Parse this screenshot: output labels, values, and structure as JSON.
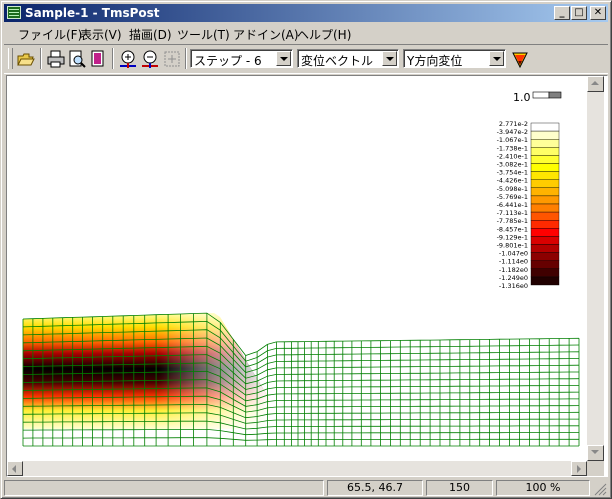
{
  "window": {
    "title": "Sample-1 - TmsPost"
  },
  "caption_buttons": {
    "minimize": "_",
    "maximize": "□",
    "close": "✕"
  },
  "menu": [
    {
      "label": "ファイル(F)"
    },
    {
      "label": "表示(V)"
    },
    {
      "label": "描画(D)"
    },
    {
      "label": "ツール(T)"
    },
    {
      "label": "アドイン(A)"
    },
    {
      "label": "ヘルプ(H)"
    }
  ],
  "toolbar": {
    "buttons": [
      "open-icon",
      "print-icon",
      "print-preview-icon",
      "page-setup-icon",
      "zoom-in-icon",
      "zoom-out-icon",
      "fit-icon"
    ],
    "step_combo": "ステップ - 6",
    "vector_combo": "変位ベクトル",
    "component_combo": "Y方向変位",
    "color_settings_icon": "palette-icon"
  },
  "scale_legend": {
    "value": "1.0"
  },
  "color_legend": {
    "labels": [
      "2.771e-2",
      "-3.947e-2",
      "-1.067e-1",
      "-1.738e-1",
      "-2.410e-1",
      "-3.082e-1",
      "-3.754e-1",
      "-4.426e-1",
      "-5.098e-1",
      "-5.769e-1",
      "-6.441e-1",
      "-7.113e-1",
      "-7.785e-1",
      "-8.457e-1",
      "-9.129e-1",
      "-9.801e-1",
      "-1.047e0",
      "-1.114e0",
      "-1.182e0",
      "-1.249e0",
      "-1.316e0"
    ],
    "colors": [
      "#ffffff",
      "#ffffcc",
      "#ffff99",
      "#ffff66",
      "#ffff33",
      "#ffff00",
      "#ffe600",
      "#ffcc00",
      "#ffb300",
      "#ff9900",
      "#ff7f00",
      "#ff5500",
      "#ff2a00",
      "#ff0000",
      "#d90000",
      "#b30000",
      "#8c0000",
      "#660000",
      "#400000",
      "#200000"
    ]
  },
  "mesh": {
    "line_color": "#007f00"
  },
  "status": {
    "coords": "65.5, 46.7",
    "value": "150",
    "zoom": "100 %"
  }
}
